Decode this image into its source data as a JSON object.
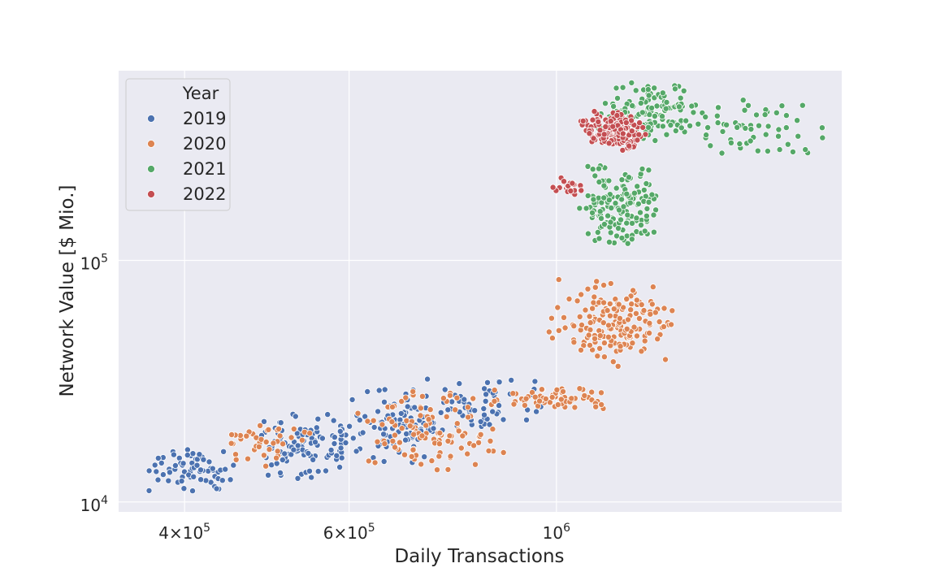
{
  "chart_data": {
    "type": "scatter",
    "title": "",
    "xlabel": "Daily Transactions",
    "ylabel": "Network Value [$ Mio.]",
    "x_scale": "log",
    "y_scale": "log",
    "xlim": [
      340000,
      2020000
    ],
    "ylim": [
      9100,
      610000
    ],
    "grid": true,
    "x_ticks": [
      {
        "value": 400000,
        "mantissa": "4",
        "times": "×",
        "base": "10",
        "exp": "5"
      },
      {
        "value": 600000,
        "mantissa": "6",
        "times": "×",
        "base": "10",
        "exp": "5"
      },
      {
        "value": 1000000,
        "mantissa": "",
        "times": "",
        "base": "10",
        "exp": "6"
      }
    ],
    "y_ticks": [
      {
        "value": 10000,
        "base": "10",
        "exp": "4"
      },
      {
        "value": 100000,
        "base": "10",
        "exp": "5"
      }
    ],
    "legend": {
      "title": "Year",
      "position": "top-left",
      "entries": [
        "2019",
        "2020",
        "2021",
        "2022"
      ]
    },
    "series": [
      {
        "name": "2019",
        "color": "#4c72b0",
        "clusters": [
          {
            "x": [
              355000,
              470000
            ],
            "y": [
              10500,
              17000
            ],
            "n": 70
          },
          {
            "x": [
              470000,
              620000
            ],
            "y": [
              12000,
              24000
            ],
            "n": 110
          },
          {
            "x": [
              600000,
              780000
            ],
            "y": [
              14000,
              32000
            ],
            "n": 100
          },
          {
            "x": [
              700000,
              1000000
            ],
            "y": [
              20000,
              34000
            ],
            "n": 60
          }
        ]
      },
      {
        "name": "2020",
        "color": "#dd8452",
        "clusters": [
          {
            "x": [
              420000,
              560000
            ],
            "y": [
              14000,
              22000
            ],
            "n": 40
          },
          {
            "x": [
              600000,
              900000
            ],
            "y": [
              13000,
              30000
            ],
            "n": 110
          },
          {
            "x": [
              850000,
              1160000
            ],
            "y": [
              24000,
              30000
            ],
            "n": 60
          },
          {
            "x": [
              970000,
              1350000
            ],
            "y": [
              34000,
              85000
            ],
            "n": 170
          }
        ]
      },
      {
        "name": "2021",
        "color": "#55a868",
        "clusters": [
          {
            "x": [
              1050000,
              1300000
            ],
            "y": [
              110000,
              260000
            ],
            "n": 160
          },
          {
            "x": [
              1100000,
              1450000
            ],
            "y": [
              300000,
              560000
            ],
            "n": 130
          },
          {
            "x": [
              1300000,
              1950000
            ],
            "y": [
              260000,
              500000
            ],
            "n": 60
          }
        ]
      },
      {
        "name": "2022",
        "color": "#c44e52",
        "clusters": [
          {
            "x": [
              990000,
              1080000
            ],
            "y": [
              180000,
              230000
            ],
            "n": 20
          },
          {
            "x": [
              1060000,
              1260000
            ],
            "y": [
              280000,
              420000
            ],
            "n": 170
          }
        ]
      }
    ]
  }
}
